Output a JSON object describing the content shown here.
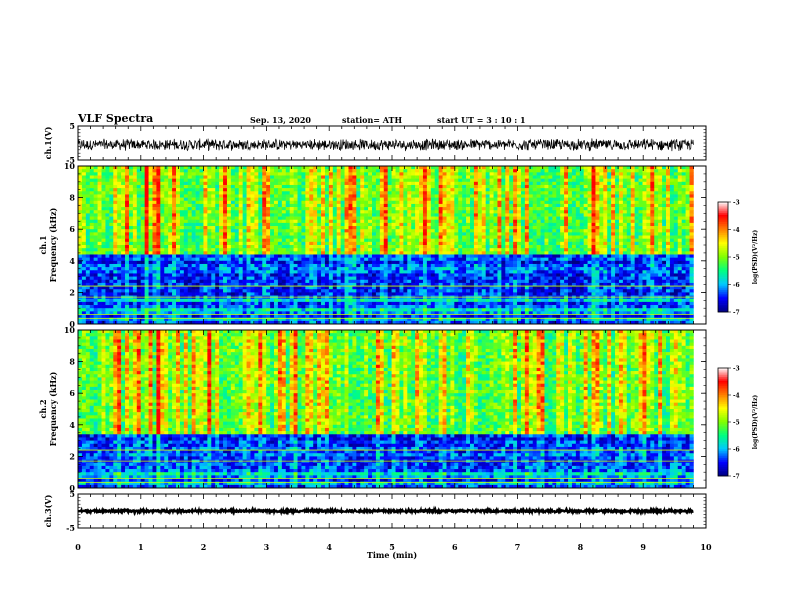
{
  "header": {
    "title": "VLF Spectra",
    "date": "Sep. 13, 2020",
    "station": "station= ATH",
    "start": "start  UT =   3  : 10 : 1"
  },
  "chart_data": {
    "type": "heatmap",
    "xlabel": "Time  (min)",
    "xlim": [
      0,
      10
    ],
    "x_ticks": [
      "0",
      "1",
      "2",
      "3",
      "4",
      "5",
      "6",
      "7",
      "8",
      "9",
      "10"
    ],
    "data_end_min": 9.8,
    "panels": [
      {
        "id": "ch1-waveform",
        "type": "line",
        "ylabel": "ch.1(V)",
        "ylim": [
          -5,
          5
        ],
        "y_ticks": [
          "5",
          "-5"
        ],
        "trace_mean": -0.5,
        "trace_amplitude": 1.6
      },
      {
        "id": "ch1-spectrogram",
        "type": "heatmap",
        "ylabel_lines": [
          "ch.1",
          "Frequency  (kHz)"
        ],
        "ylim": [
          0,
          10
        ],
        "y_ticks": [
          "0",
          "2",
          "4",
          "6",
          "8",
          "10"
        ],
        "colorbar": {
          "label": "log(PSD)(V²/Hz)",
          "range": [
            -7,
            -3
          ],
          "ticks": [
            "-3",
            "-4",
            "-5",
            "-6",
            "-7"
          ],
          "colors": [
            "#000080",
            "#0000ff",
            "#00c8ff",
            "#00ff80",
            "#80ff00",
            "#ffff00",
            "#ff8000",
            "#ff0000",
            "#ffffff"
          ]
        },
        "low_band_khz": [
          0.3,
          4.5
        ],
        "high_band_khz": [
          4.5,
          10
        ]
      },
      {
        "id": "ch2-spectrogram",
        "type": "heatmap",
        "ylabel_lines": [
          "ch.2",
          "Frequency  (kHz)"
        ],
        "ylim": [
          0,
          10
        ],
        "y_ticks": [
          "0",
          "2",
          "4",
          "6",
          "8",
          "10"
        ],
        "colorbar": {
          "label": "log(PSD)(V²/Hz)",
          "range": [
            -7,
            -3
          ],
          "ticks": [
            "-3",
            "-4",
            "-5",
            "-6",
            "-7"
          ],
          "colors": [
            "#000080",
            "#0000ff",
            "#00c8ff",
            "#00ff80",
            "#80ff00",
            "#ffff00",
            "#ff8000",
            "#ff0000",
            "#ffffff"
          ]
        },
        "low_band_khz": [
          0.3,
          3.5
        ],
        "high_band_khz": [
          3.5,
          10
        ]
      },
      {
        "id": "ch3-waveform",
        "type": "line",
        "ylabel": "ch.3(V)",
        "ylim": [
          -5,
          5
        ],
        "y_ticks": [
          "5",
          "-5"
        ],
        "trace_mean": 0,
        "trace_amplitude": 0.35
      }
    ]
  }
}
